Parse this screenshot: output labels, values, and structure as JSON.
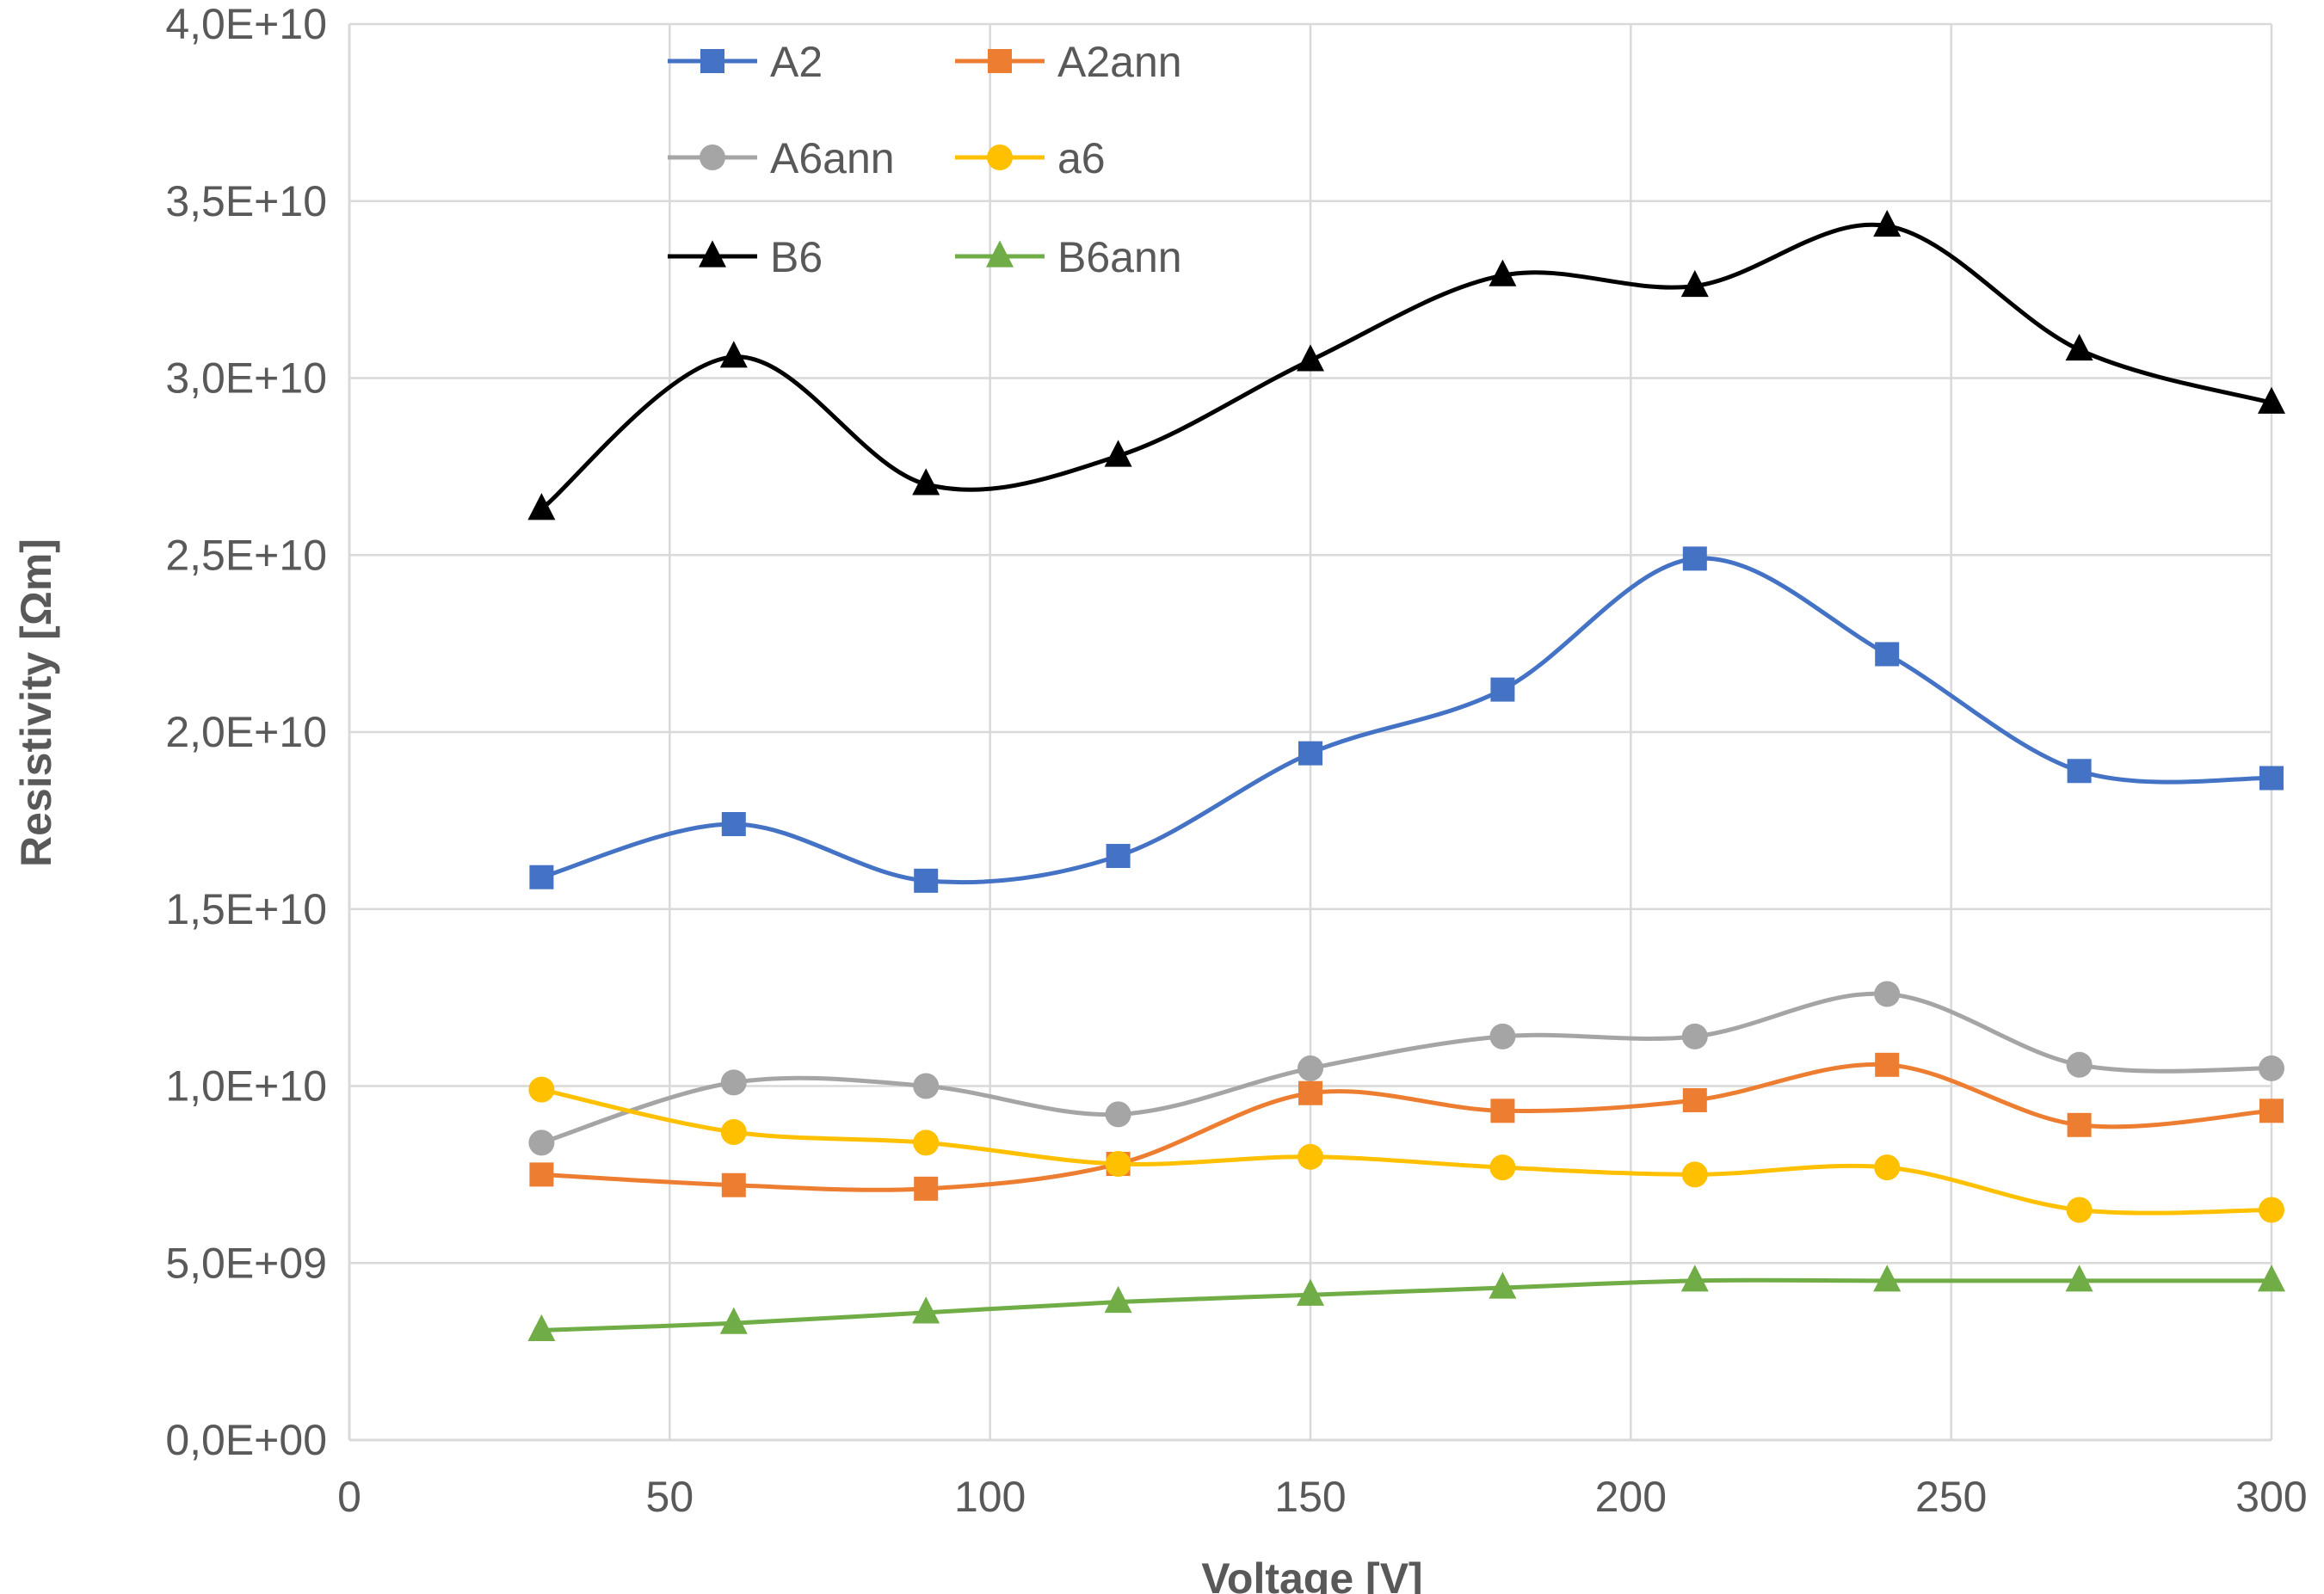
{
  "chart_data": {
    "type": "line",
    "title": "",
    "xlabel": "Voltage [V]",
    "ylabel": "Resistivity [Ωm]",
    "xlim": [
      0,
      300
    ],
    "ylim": [
      0,
      40000000000
    ],
    "xticks": [
      0,
      50,
      100,
      150,
      200,
      250,
      300
    ],
    "xtick_labels": [
      "0",
      "50",
      "100",
      "150",
      "200",
      "250",
      "300"
    ],
    "yticks": [
      0,
      5000000000,
      10000000000,
      15000000000,
      20000000000,
      25000000000,
      30000000000,
      35000000000,
      40000000000
    ],
    "ytick_labels": [
      "0,0E+00",
      "5,0E+09",
      "1,0E+10",
      "1,5E+10",
      "2,0E+10",
      "2,5E+10",
      "3,0E+10",
      "3,5E+10",
      "4,0E+10"
    ],
    "grid": true,
    "legend_position": "top-left",
    "x": [
      30,
      60,
      90,
      120,
      150,
      180,
      210,
      240,
      270,
      300
    ],
    "series": [
      {
        "name": "A2",
        "color": "#4472C4",
        "marker": "square",
        "values": [
          15900000000,
          17400000000,
          15800000000,
          16500000000,
          19400000000,
          21200000000,
          24900000000,
          22200000000,
          18900000000,
          18700000000
        ]
      },
      {
        "name": "A2ann",
        "color": "#ED7D31",
        "marker": "square",
        "values": [
          7500000000,
          7200000000,
          7100000000,
          7800000000,
          9800000000,
          9300000000,
          9600000000,
          10600000000,
          8900000000,
          9300000000
        ]
      },
      {
        "name": "A6ann",
        "color": "#A5A5A5",
        "marker": "circle",
        "values": [
          8400000000,
          10100000000,
          10000000000,
          9200000000,
          10500000000,
          11400000000,
          11400000000,
          12600000000,
          10600000000,
          10500000000
        ]
      },
      {
        "name": "a6",
        "color": "#FFC000",
        "marker": "circle",
        "values": [
          9900000000,
          8700000000,
          8400000000,
          7800000000,
          8000000000,
          7700000000,
          7500000000,
          7700000000,
          6500000000,
          6500000000
        ]
      },
      {
        "name": "B6",
        "color": "#000000",
        "marker": "triangle",
        "values": [
          26300000000,
          30600000000,
          27000000000,
          27800000000,
          30500000000,
          32900000000,
          32600000000,
          34300000000,
          30800000000,
          29300000000
        ]
      },
      {
        "name": "B6ann",
        "color": "#70AD47",
        "marker": "triangle",
        "values": [
          3100000000,
          3300000000,
          3600000000,
          3900000000,
          4100000000,
          4300000000,
          4500000000,
          4500000000,
          4500000000,
          4500000000
        ]
      }
    ]
  }
}
